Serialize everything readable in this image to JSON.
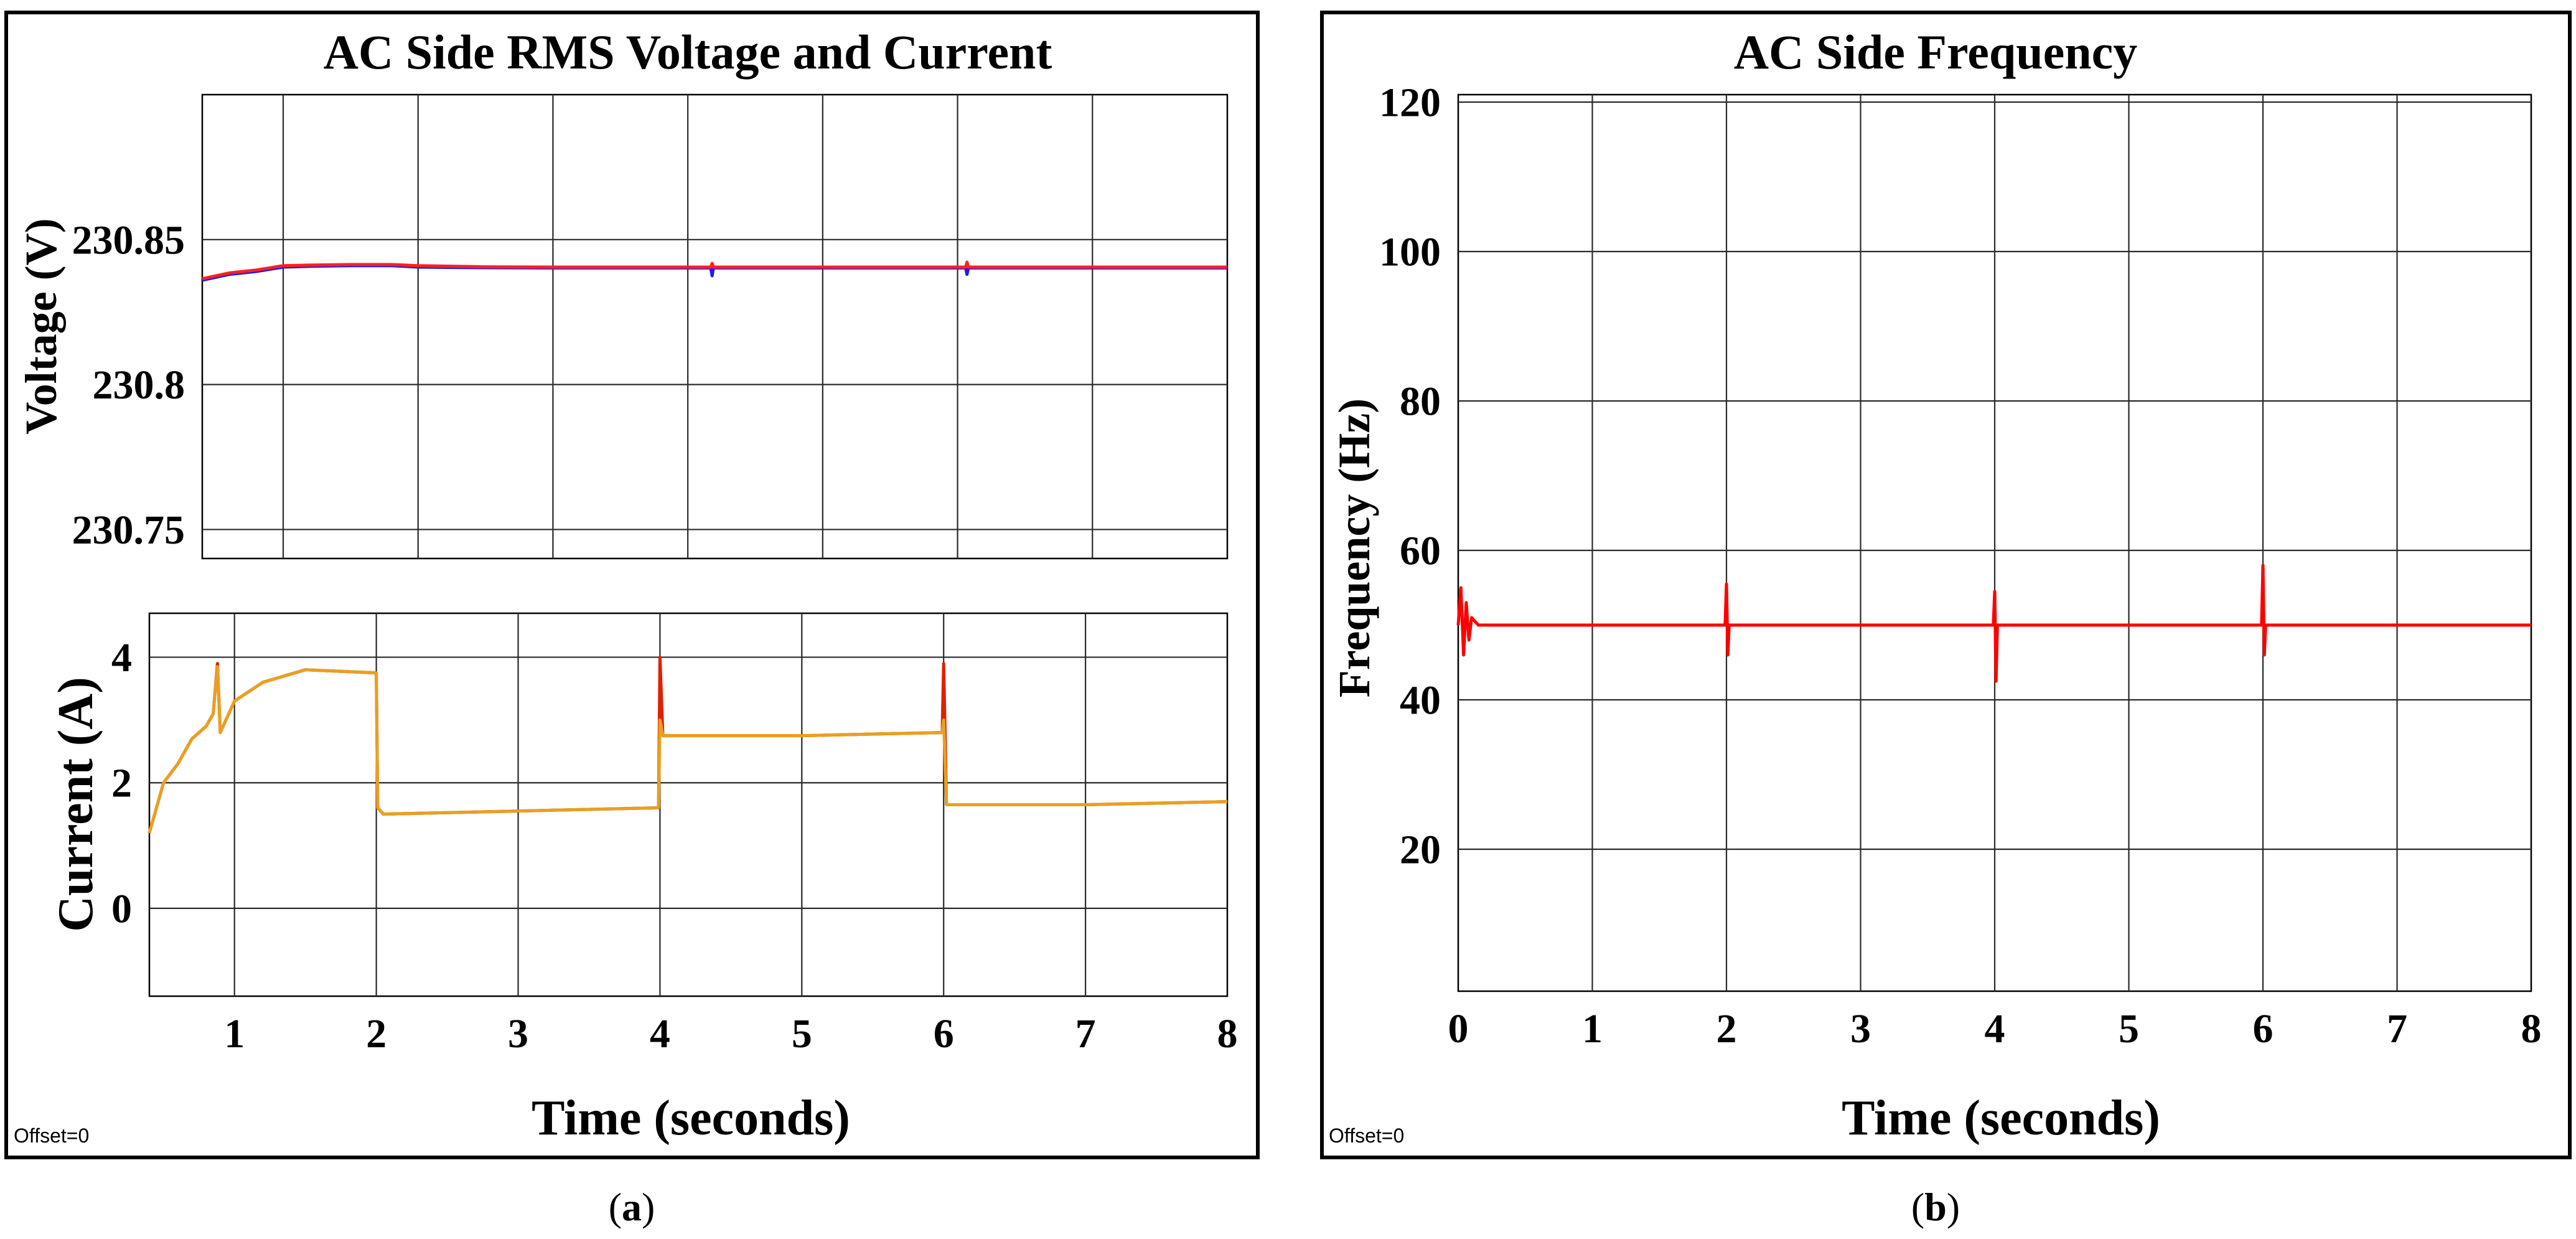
{
  "panels": [
    {
      "id": "a",
      "title": "AC Side RMS Voltage  and Current",
      "caption_letter": "a",
      "offset_label": "Offset=0"
    },
    {
      "id": "b",
      "title": "AC Side Frequency",
      "caption_letter": "b",
      "offset_label": "Offset=0"
    }
  ],
  "chart_data": [
    {
      "id": "voltage",
      "panel": "a",
      "type": "line",
      "title": "AC Side RMS Voltage  and Current",
      "xlabel": "",
      "ylabel": "Voltage (V)",
      "xlim": [
        0.4,
        8
      ],
      "ylim": [
        230.74,
        230.9
      ],
      "x_gridlines": [
        1,
        2,
        3,
        4,
        5,
        6,
        7,
        8
      ],
      "y_ticks": [
        230.75,
        230.8,
        230.85
      ],
      "y_tick_labels": [
        "230.75",
        "230.8",
        "230.85"
      ],
      "grid": true,
      "series": [
        {
          "name": "voltage-blue",
          "color": "#1a1aff",
          "x": [
            0.4,
            0.6,
            0.8,
            1.0,
            1.2,
            1.5,
            1.8,
            2.0,
            2.5,
            3.0,
            3.5,
            4.0,
            4.17,
            4.18,
            4.19,
            4.3,
            5.0,
            5.5,
            6.0,
            6.06,
            6.07,
            6.08,
            6.3,
            7.0,
            8.0
          ],
          "y": [
            230.836,
            230.838,
            230.839,
            230.8405,
            230.8408,
            230.841,
            230.841,
            230.8405,
            230.8403,
            230.8402,
            230.8402,
            230.8402,
            230.8402,
            230.8375,
            230.8402,
            230.8402,
            230.8402,
            230.8402,
            230.8402,
            230.8402,
            230.838,
            230.8402,
            230.8402,
            230.8402,
            230.8402
          ]
        },
        {
          "name": "voltage-red",
          "color": "#ff2020",
          "x": [
            0.4,
            0.6,
            0.8,
            1.0,
            1.2,
            1.5,
            1.8,
            2.0,
            2.5,
            3.0,
            3.5,
            4.0,
            4.17,
            4.18,
            4.19,
            4.3,
            5.0,
            5.5,
            6.0,
            6.06,
            6.07,
            6.08,
            6.3,
            7.0,
            8.0
          ],
          "y": [
            230.8365,
            230.8385,
            230.8395,
            230.841,
            230.8412,
            230.8414,
            230.8414,
            230.841,
            230.8406,
            230.8405,
            230.8405,
            230.8405,
            230.8405,
            230.8418,
            230.8405,
            230.8405,
            230.8405,
            230.8405,
            230.8405,
            230.8405,
            230.8422,
            230.8405,
            230.8405,
            230.8405,
            230.8405
          ]
        }
      ]
    },
    {
      "id": "current",
      "panel": "a",
      "type": "line",
      "title": "",
      "xlabel": "Time (seconds)",
      "ylabel": "Current (A)",
      "xlim": [
        0.4,
        8
      ],
      "ylim": [
        -1.4,
        4.7
      ],
      "x_ticks": [
        1,
        2,
        3,
        4,
        5,
        6,
        7,
        8
      ],
      "x_tick_labels": [
        "1",
        "2",
        "3",
        "4",
        "5",
        "6",
        "7",
        "8"
      ],
      "y_ticks": [
        0,
        2,
        4
      ],
      "y_tick_labels": [
        "0",
        "2",
        "4"
      ],
      "grid": true,
      "series": [
        {
          "name": "current-red",
          "color": "#e02000",
          "x": [
            0.4,
            0.5,
            0.6,
            0.7,
            0.8,
            0.85,
            0.88,
            0.9,
            1.0,
            1.2,
            1.5,
            2.0,
            2.01,
            2.05,
            3.0,
            3.98,
            3.99,
            4.0,
            4.02,
            5.0,
            5.98,
            5.99,
            6.0,
            6.02,
            7.0,
            8.0
          ],
          "y": [
            1.2,
            2.0,
            2.3,
            2.7,
            2.9,
            3.1,
            3.9,
            2.8,
            3.3,
            3.6,
            3.8,
            3.75,
            1.6,
            1.5,
            1.55,
            1.6,
            1.6,
            4.0,
            2.75,
            2.75,
            2.8,
            2.8,
            3.9,
            1.65,
            1.65,
            1.7
          ]
        },
        {
          "name": "current-yellow",
          "color": "#e8a020",
          "x": [
            0.4,
            0.5,
            0.6,
            0.7,
            0.8,
            0.85,
            0.88,
            0.9,
            1.0,
            1.2,
            1.5,
            2.0,
            2.01,
            2.05,
            3.0,
            3.98,
            3.99,
            4.0,
            4.02,
            5.0,
            5.98,
            5.99,
            6.0,
            6.02,
            7.0,
            8.0
          ],
          "y": [
            1.2,
            2.0,
            2.3,
            2.7,
            2.9,
            3.1,
            3.85,
            2.8,
            3.3,
            3.6,
            3.8,
            3.75,
            1.6,
            1.5,
            1.55,
            1.6,
            1.6,
            3.0,
            2.75,
            2.75,
            2.8,
            2.8,
            3.0,
            1.65,
            1.65,
            1.7
          ]
        }
      ]
    },
    {
      "id": "frequency",
      "panel": "b",
      "type": "line",
      "title": "AC Side Frequency",
      "xlabel": "Time (seconds)",
      "ylabel": "Frequency (Hz)",
      "xlim": [
        0,
        8
      ],
      "ylim": [
        1,
        121
      ],
      "x_ticks": [
        0,
        1,
        2,
        3,
        4,
        5,
        6,
        7,
        8
      ],
      "x_tick_labels": [
        "0",
        "1",
        "2",
        "3",
        "4",
        "5",
        "6",
        "7",
        "8"
      ],
      "y_ticks": [
        20,
        40,
        60,
        80,
        100,
        120
      ],
      "y_tick_labels": [
        "20",
        "40",
        "60",
        "80",
        "100",
        "120"
      ],
      "grid": true,
      "series": [
        {
          "name": "frequency-red",
          "color": "#ff0000",
          "x": [
            0.0,
            0.02,
            0.04,
            0.06,
            0.08,
            0.1,
            0.15,
            1.99,
            2.0,
            2.01,
            2.02,
            3.99,
            4.0,
            4.01,
            4.02,
            5.99,
            6.0,
            6.01,
            6.02,
            8.0
          ],
          "y": [
            50,
            55,
            46,
            53,
            48,
            51,
            50,
            50,
            55.5,
            46,
            50,
            50,
            54.5,
            42.5,
            50,
            50,
            58,
            46,
            50,
            50
          ]
        }
      ]
    }
  ]
}
